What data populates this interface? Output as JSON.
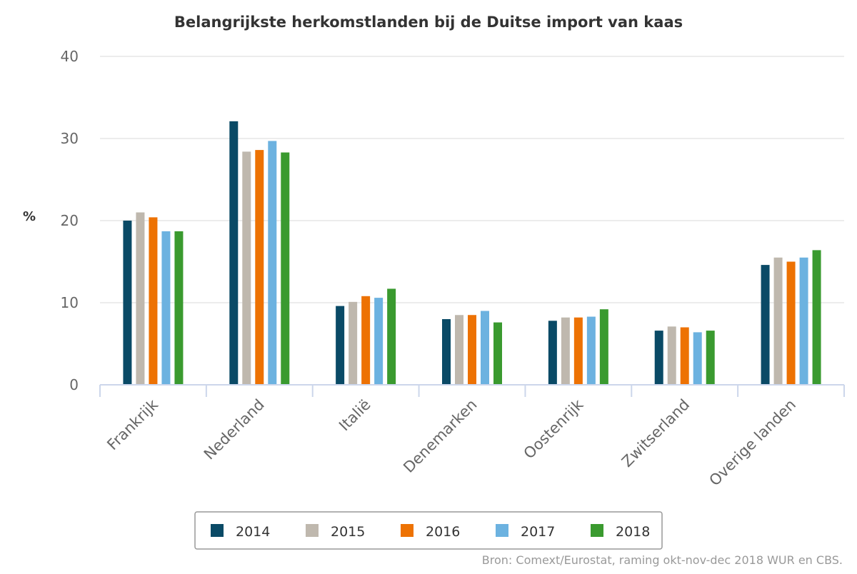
{
  "chart_data": {
    "type": "bar",
    "title": "Belangrijkste herkomstlanden bij de Duitse import van kaas",
    "ylabel": "%",
    "xlabel": "",
    "ylim": [
      0,
      40
    ],
    "yticks": [
      0,
      10,
      20,
      30,
      40
    ],
    "grid": true,
    "legend_position": "bottom",
    "categories": [
      "Frankrijk",
      "Nederland",
      "Italië",
      "Denemarken",
      "Oostenrijk",
      "Zwitserland",
      "Overige landen"
    ],
    "series": [
      {
        "name": "2014",
        "color": "#0a4a66",
        "values": [
          20.0,
          32.1,
          9.6,
          8.0,
          7.8,
          6.6,
          14.6
        ]
      },
      {
        "name": "2015",
        "color": "#bfb8ae",
        "values": [
          21.0,
          28.4,
          10.1,
          8.5,
          8.2,
          7.1,
          15.5
        ]
      },
      {
        "name": "2016",
        "color": "#ed7203",
        "values": [
          20.4,
          28.6,
          10.8,
          8.5,
          8.2,
          7.0,
          15.0
        ]
      },
      {
        "name": "2017",
        "color": "#6cb2e0",
        "values": [
          18.7,
          29.7,
          10.6,
          9.0,
          8.3,
          6.4,
          15.5
        ]
      },
      {
        "name": "2018",
        "color": "#3a9a2f",
        "values": [
          18.7,
          28.3,
          11.7,
          7.6,
          9.2,
          6.6,
          16.4
        ]
      }
    ],
    "source": "Bron: Comext/Eurostat, raming okt-nov-dec 2018 WUR en CBS."
  }
}
